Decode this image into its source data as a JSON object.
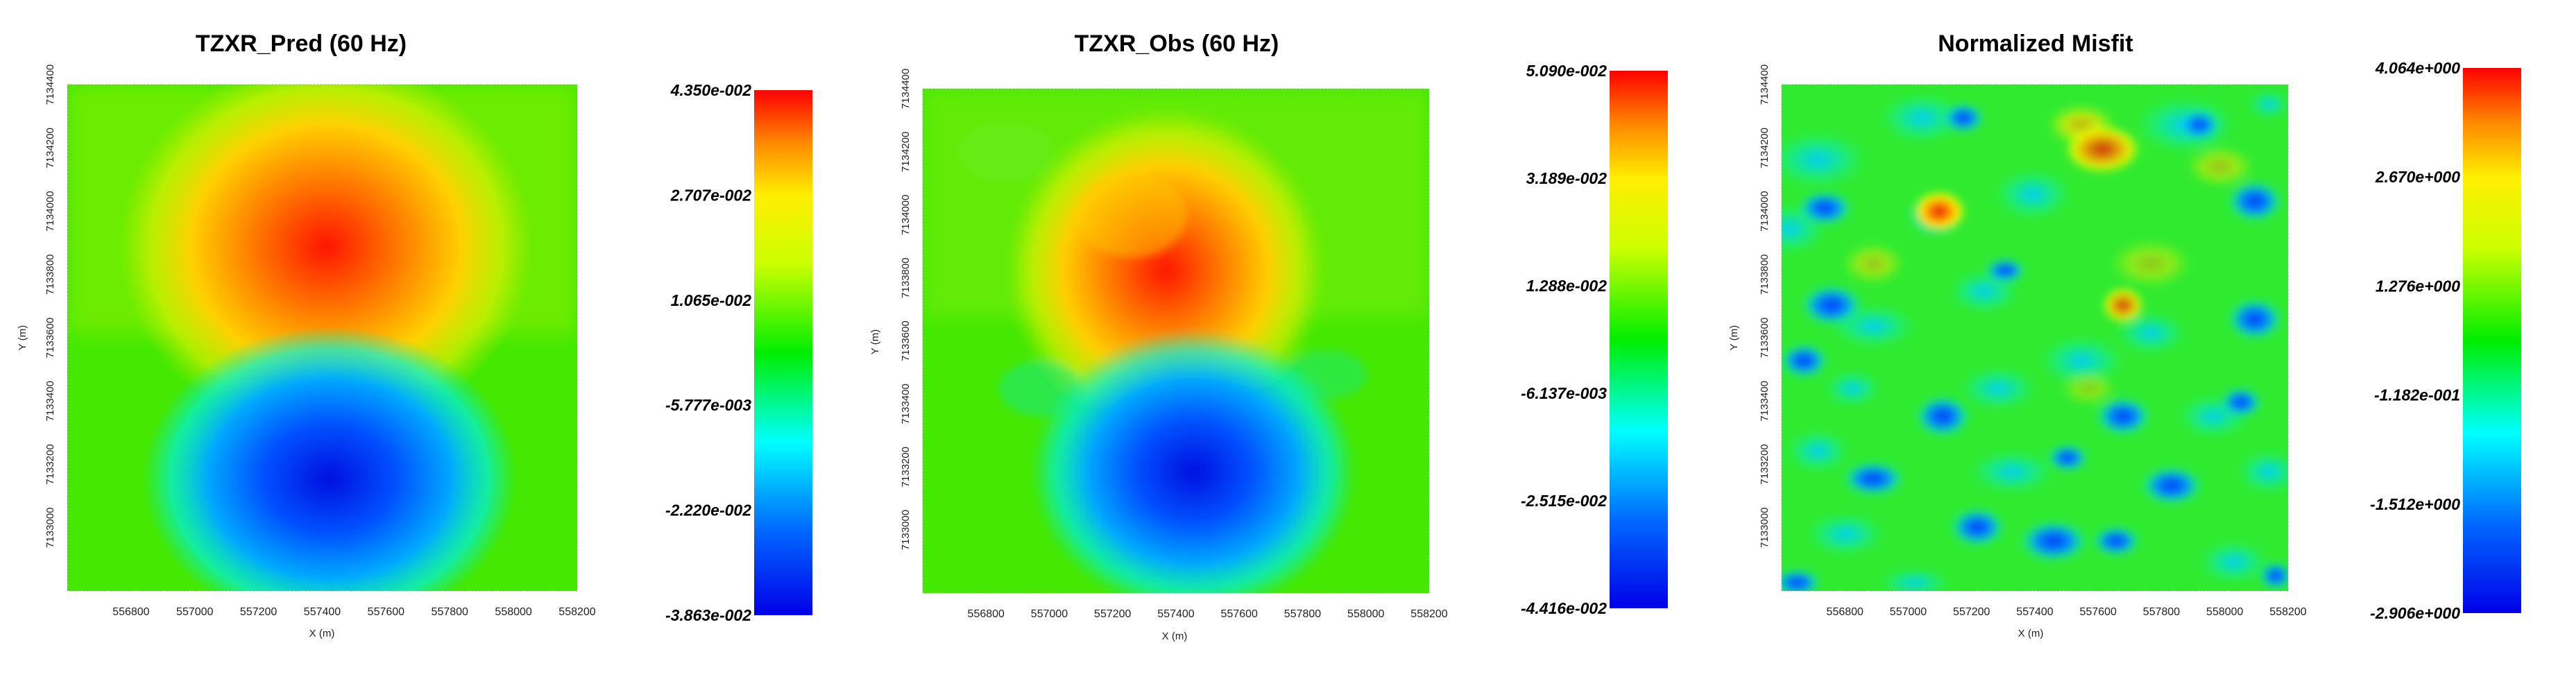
{
  "chart_data": [
    {
      "type": "heatmap",
      "title": "TZXR_Pred (60 Hz)",
      "xlabel": "X (m)",
      "ylabel": "Y (m)",
      "xlim": [
        556600,
        558200
      ],
      "ylim": [
        7132800,
        7134400
      ],
      "x_ticks": [
        "556800",
        "557000",
        "557200",
        "557400",
        "557600",
        "557800",
        "558000",
        "558200"
      ],
      "y_ticks": [
        "7133000",
        "7133200",
        "7133400",
        "7133600",
        "7133800",
        "7134000",
        "7134200",
        "7134400"
      ],
      "colorbar_ticks": [
        "4.350e-002",
        "2.707e-002",
        "1.065e-002",
        "-5.777e-003",
        "-2.220e-002",
        "-3.863e-002"
      ],
      "value_range": [
        -0.03863,
        0.0435
      ],
      "features": [
        {
          "kind": "maximum",
          "x": 557400,
          "y": 7133830,
          "value": 0.0435
        },
        {
          "kind": "minimum",
          "x": 557430,
          "y": 7133080,
          "value": -0.03863
        }
      ]
    },
    {
      "type": "heatmap",
      "title": "TZXR_Obs (60 Hz)",
      "xlabel": "X (m)",
      "ylabel": "Y (m)",
      "xlim": [
        556600,
        558200
      ],
      "ylim": [
        7132800,
        7134400
      ],
      "x_ticks": [
        "556800",
        "557000",
        "557200",
        "557400",
        "557600",
        "557800",
        "558000",
        "558200"
      ],
      "y_ticks": [
        "7133000",
        "7133200",
        "7133400",
        "7133600",
        "7133800",
        "7134000",
        "7134200",
        "7134400"
      ],
      "colorbar_ticks": [
        "5.090e-002",
        "3.189e-002",
        "1.288e-002",
        "-6.137e-003",
        "-2.515e-002",
        "-4.416e-002"
      ],
      "value_range": [
        -0.04416,
        0.0509
      ],
      "features": [
        {
          "kind": "maximum",
          "x": 557380,
          "y": 7133800,
          "value": 0.0509
        },
        {
          "kind": "minimum",
          "x": 557420,
          "y": 7133080,
          "value": -0.04416
        }
      ]
    },
    {
      "type": "heatmap",
      "title": "Normalized Misfit",
      "xlabel": "X (m)",
      "ylabel": "Y (m)",
      "xlim": [
        556600,
        558200
      ],
      "ylim": [
        7132800,
        7134400
      ],
      "x_ticks": [
        "556800",
        "557000",
        "557200",
        "557400",
        "557600",
        "557800",
        "558000",
        "558200"
      ],
      "y_ticks": [
        "7133000",
        "7133200",
        "7133400",
        "7133600",
        "7133800",
        "7134000",
        "7134200",
        "7134400"
      ],
      "colorbar_ticks": [
        "4.064e+000",
        "2.670e+000",
        "1.276e+000",
        "-1.182e-001",
        "-1.512e+000",
        "-2.906e+000"
      ],
      "value_range": [
        -2.906,
        4.064
      ],
      "features": [
        {
          "kind": "maximum",
          "x": 557080,
          "y": 7134000,
          "value": 4.064
        },
        {
          "kind": "local-high",
          "x": 557600,
          "y": 7134220,
          "value": 3.0
        },
        {
          "kind": "local-high",
          "x": 557600,
          "y": 7133720,
          "value": 3.0
        },
        {
          "kind": "minimum",
          "x": 557000,
          "y": 7133900,
          "value": -2.906
        }
      ]
    }
  ],
  "colors": [
    "#0000e8",
    "#0066ff",
    "#00ffff",
    "#00ee00",
    "#ffff00",
    "#ff8800",
    "#ff0000"
  ]
}
